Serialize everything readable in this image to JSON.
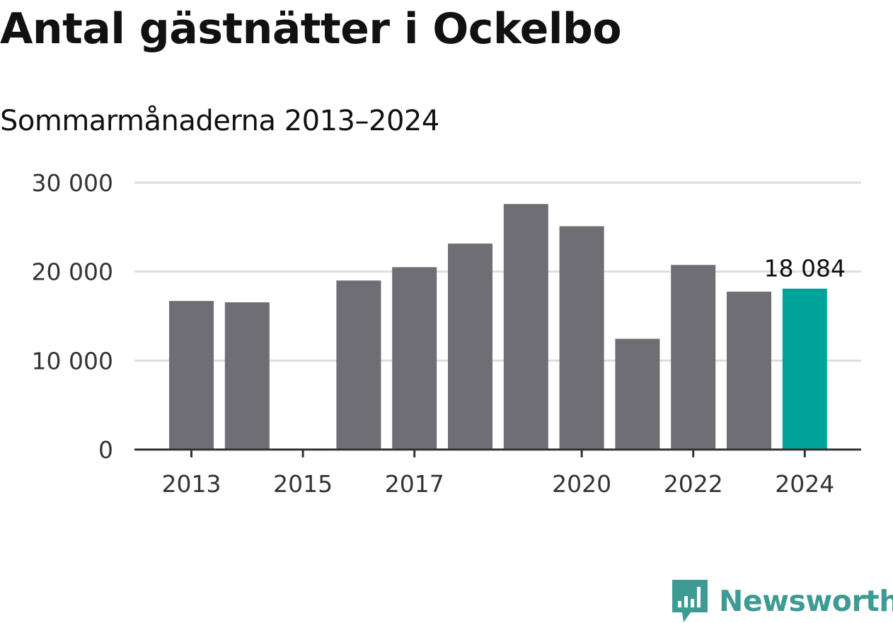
{
  "chart_data": {
    "type": "bar",
    "title": "Antal gästnätter i Ockelbo",
    "subtitle": "Sommarmånaderna 2013–2024",
    "categories": [
      "2013",
      "2014",
      "2015",
      "2016",
      "2017",
      "2018",
      "2019",
      "2020",
      "2021",
      "2022",
      "2023",
      "2024"
    ],
    "values": [
      16700,
      16550,
      null,
      19000,
      20500,
      23150,
      27600,
      25100,
      12450,
      20750,
      17750,
      18084
    ],
    "x_tick_labels": [
      "2013",
      "2015",
      "2017",
      "2020",
      "2022",
      "2024"
    ],
    "y_ticks": [
      0,
      10000,
      20000,
      30000
    ],
    "y_tick_labels": [
      "0",
      "10 000",
      "20 000",
      "30 000"
    ],
    "ylim": [
      0,
      30000
    ],
    "grid": true,
    "highlight": {
      "category": "2024",
      "label": "18 084"
    },
    "colors": {
      "bar": "#6f6e74",
      "highlight": "#00a39a",
      "grid": "#dddddd",
      "axis": "#333333"
    }
  },
  "brand": {
    "name": "Newsworthy",
    "icon": "bar-chart-speech-bubble-icon",
    "color": "#3d9b93"
  }
}
